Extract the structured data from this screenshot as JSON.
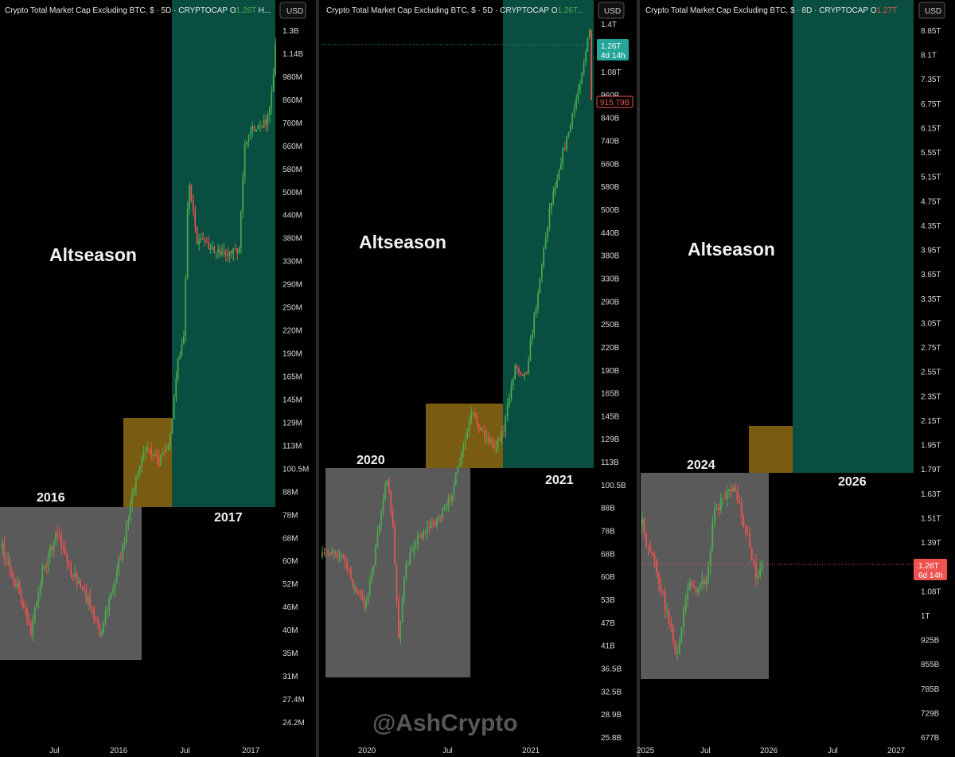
{
  "watermark": "@AshCrypto",
  "colors": {
    "up": "#26a69a",
    "upBright": "#4caf50",
    "down": "#ef5350",
    "teal": "#0a4e41",
    "amber": "#7a5b12",
    "gray": "#5a5a5a"
  },
  "panels": [
    {
      "header": {
        "title": "Crypto Total Market Cap Excluding BTC, $ · 5D · CRYPTOCAP",
        "open_label": "O",
        "open_value": "1.26T",
        "tail": "H..."
      },
      "currency": "USD",
      "annotations": {
        "altseason": "Altseason",
        "year_a": "2016",
        "year_b": "2017"
      },
      "y_ticks": [
        "1.3B",
        "1.14B",
        "980M",
        "860M",
        "760M",
        "660M",
        "580M",
        "500M",
        "440M",
        "380M",
        "330M",
        "290M",
        "250M",
        "220M",
        "190M",
        "165M",
        "145M",
        "129M",
        "113M",
        "100.5M",
        "88M",
        "78M",
        "68M",
        "60M",
        "52M",
        "46M",
        "40M",
        "35M",
        "31M",
        "27.4M",
        "24.2M"
      ],
      "x_ticks": [
        "Jul",
        "2016",
        "Jul",
        "2017"
      ]
    },
    {
      "header": {
        "title": "Crypto Total Market Cap Excluding BTC, $ · 5D · CRYPTOCAP",
        "open_label": "O",
        "open_value": "1.26T..."
      },
      "currency": "USD",
      "annotations": {
        "altseason": "Altseason",
        "year_a": "2020",
        "year_b": "2021"
      },
      "price_label": {
        "value": "1.26T",
        "countdown": "4d 14h"
      },
      "low_label": "915.79B",
      "y_ticks": [
        "1.4T",
        "1.08T",
        "960B",
        "840B",
        "740B",
        "660B",
        "580B",
        "500B",
        "440B",
        "380B",
        "330B",
        "290B",
        "250B",
        "220B",
        "190B",
        "165B",
        "145B",
        "129B",
        "113B",
        "100.5B",
        "88B",
        "78B",
        "68B",
        "60B",
        "53B",
        "47B",
        "41B",
        "36.5B",
        "32.5B",
        "28.9B",
        "25.8B"
      ],
      "x_ticks": [
        "2020",
        "Jul",
        "2021"
      ]
    },
    {
      "header": {
        "title": "Crypto Total Market Cap Excluding BTC, $ · 8D · CRYPTOCAP",
        "open_label": "O",
        "open_value": "1.27T"
      },
      "currency": "USD",
      "annotations": {
        "altseason": "Altseason",
        "year_a": "2024",
        "year_b": "2026"
      },
      "price_label": {
        "value": "1.26T",
        "countdown": "6d 14h"
      },
      "y_ticks": [
        "8.85T",
        "8.1T",
        "7.35T",
        "6.75T",
        "6.15T",
        "5.55T",
        "5.15T",
        "4.75T",
        "4.35T",
        "3.95T",
        "3.65T",
        "3.35T",
        "3.05T",
        "2.75T",
        "2.55T",
        "2.35T",
        "2.15T",
        "1.95T",
        "1.79T",
        "1.63T",
        "1.51T",
        "1.39T",
        "1.19T",
        "1.08T",
        "1T",
        "925B",
        "855B",
        "785B",
        "729B",
        "677B"
      ],
      "x_ticks": [
        "2025",
        "Jul",
        "2026",
        "Jul",
        "2027"
      ]
    }
  ],
  "chart_data": [
    {
      "type": "candlestick",
      "title": "Crypto Total Market Cap Excluding BTC, $ · 5D · CRYPTOCAP",
      "x_range": [
        "2015-03",
        "2017-07"
      ],
      "scale": "log",
      "ylim": [
        "22M",
        "1.4B"
      ],
      "trend_path": [
        [
          "2015-04",
          "40M"
        ],
        [
          "2015-06",
          "56M"
        ],
        [
          "2015-07",
          "44M"
        ],
        [
          "2015-08",
          "60M"
        ],
        [
          "2015-09",
          "70M"
        ],
        [
          "2015-10",
          "55M"
        ],
        [
          "2015-11",
          "48M"
        ],
        [
          "2015-12",
          "42M"
        ],
        [
          "2016-01",
          "52M"
        ],
        [
          "2016-02",
          "70M"
        ],
        [
          "2016-03",
          "98M"
        ],
        [
          "2016-04",
          "120M"
        ],
        [
          "2016-05",
          "110M"
        ],
        [
          "2016-06",
          "200M"
        ],
        [
          "2016-06",
          "520M"
        ],
        [
          "2016-08",
          "380M"
        ],
        [
          "2016-10",
          "360M"
        ],
        [
          "2016-12",
          "640M"
        ],
        [
          "2017-01",
          "780M"
        ],
        [
          "2017-03",
          "1.3B"
        ]
      ],
      "zones": [
        {
          "kind": "gray",
          "x": [
            "2015-03",
            "2016-05"
          ],
          "y": [
            "35M",
            "86M"
          ]
        },
        {
          "kind": "amber",
          "x": [
            "2016-03",
            "2016-05"
          ],
          "y": [
            "86M",
            "140M"
          ]
        },
        {
          "kind": "teal",
          "x": [
            "2016-05",
            "2017-05"
          ],
          "y": [
            "86M",
            "1.4B"
          ]
        }
      ]
    },
    {
      "type": "candlestick",
      "title": "Crypto Total Market Cap Excluding BTC, $ · 5D · CRYPTOCAP",
      "x_range": [
        "2019-07",
        "2021-05"
      ],
      "scale": "log",
      "ylim": [
        "25.8B",
        "1.5T"
      ],
      "trend_path": [
        [
          "2019-07",
          "62B"
        ],
        [
          "2019-08",
          "74B"
        ],
        [
          "2019-10",
          "58B"
        ],
        [
          "2019-11",
          "52B"
        ],
        [
          "2020-01",
          "72B"
        ],
        [
          "2020-02",
          "112B"
        ],
        [
          "2020-03",
          "38B"
        ],
        [
          "2020-03",
          "56B"
        ],
        [
          "2020-05",
          "70B"
        ],
        [
          "2020-07",
          "90B"
        ],
        [
          "2020-08",
          "150B"
        ],
        [
          "2020-09",
          "128B"
        ],
        [
          "2020-10",
          "140B"
        ],
        [
          "2020-11",
          "200B"
        ],
        [
          "2021-01",
          "340B"
        ],
        [
          "2021-02",
          "700B"
        ],
        [
          "2021-04",
          "1.26T"
        ],
        [
          "2021-05",
          "660B"
        ]
      ],
      "zones": [
        {
          "kind": "gray",
          "x": [
            "2019-07",
            "2020-09"
          ],
          "y": [
            "37B",
            "115B"
          ]
        },
        {
          "kind": "amber",
          "x": [
            "2020-07",
            "2020-10"
          ],
          "y": [
            "115B",
            "165B"
          ]
        },
        {
          "kind": "teal",
          "x": [
            "2020-10",
            "2021-05"
          ],
          "y": [
            "115B",
            "1.4T"
          ]
        }
      ]
    },
    {
      "type": "candlestick",
      "title": "Crypto Total Market Cap Excluding BTC, $ · 8D · CRYPTOCAP",
      "x_range": [
        "2024-12",
        "2027-01"
      ],
      "scale": "log",
      "ylim": [
        "660B",
        "9T"
      ],
      "trend_path": [
        [
          "2024-12",
          "1.39T"
        ],
        [
          "2025-01",
          "1.31T"
        ],
        [
          "2025-02",
          "1.12T"
        ],
        [
          "2025-03",
          "0.95T"
        ],
        [
          "2025-04",
          "0.86T"
        ],
        [
          "2025-05",
          "1.05T"
        ],
        [
          "2025-06",
          "1.15T"
        ],
        [
          "2025-07",
          "1.4T"
        ],
        [
          "2025-08",
          "1.65T"
        ],
        [
          "2025-09",
          "1.5T"
        ],
        [
          "2025-10",
          "1.55T"
        ],
        [
          "2025-11",
          "1.25T"
        ],
        [
          "2025-12",
          "1.26T"
        ]
      ],
      "zones": [
        {
          "kind": "gray",
          "x": [
            "2024-12",
            "2025-12"
          ],
          "y": [
            "840B",
            "1.79T"
          ]
        },
        {
          "kind": "amber",
          "x": [
            "2025-11",
            "2026-02"
          ],
          "y": [
            "1.79T",
            "2.1T"
          ]
        },
        {
          "kind": "teal",
          "x": [
            "2026-02",
            "2026-12"
          ],
          "y": [
            "1.79T",
            "9T"
          ]
        }
      ],
      "last_price": "1.26T"
    }
  ]
}
